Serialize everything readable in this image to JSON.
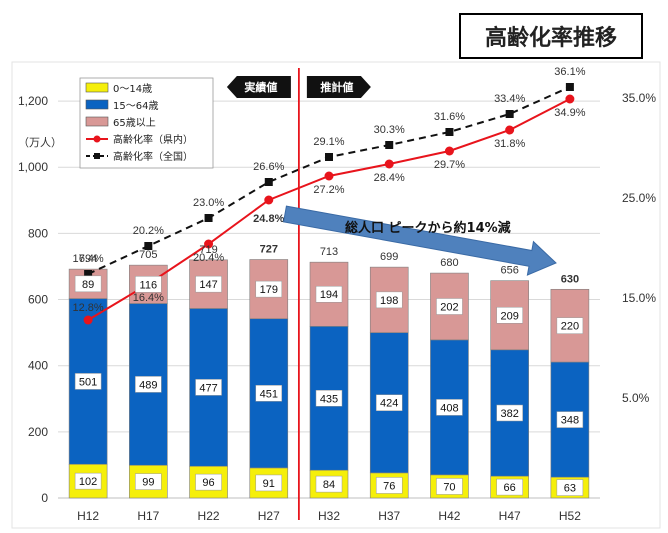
{
  "title": "高齢化率推移",
  "unit_label": "（万人）",
  "legend": [
    {
      "label": "0～14歳",
      "color": "#f5ef0a",
      "kind": "box"
    },
    {
      "label": "15～64歳",
      "color": "#0b63c1",
      "kind": "box"
    },
    {
      "label": "65歳以上",
      "color": "#d89896",
      "kind": "box"
    },
    {
      "label": "高齢化率（県内）",
      "color": "#e8141c",
      "kind": "line"
    },
    {
      "label": "高齢化率（全国）",
      "color": "#111111",
      "kind": "dash"
    }
  ],
  "period_labels": {
    "actual": "実績値",
    "projected": "推計値"
  },
  "annotation": "総人口 ピークから約14%減",
  "chart_data": {
    "type": "bar",
    "stacked": true,
    "categories": [
      "H12",
      "H17",
      "H22",
      "H27",
      "H32",
      "H37",
      "H42",
      "H47",
      "H52"
    ],
    "series": [
      {
        "name": "0～14歳",
        "color": "#f5ef0a",
        "values": [
          102,
          99,
          96,
          91,
          84,
          76,
          70,
          66,
          63
        ]
      },
      {
        "name": "15～64歳",
        "color": "#0b63c1",
        "values": [
          501,
          489,
          477,
          451,
          435,
          424,
          408,
          382,
          348
        ]
      },
      {
        "name": "65歳以上",
        "color": "#d89896",
        "values": [
          89,
          116,
          147,
          179,
          194,
          198,
          202,
          209,
          220
        ]
      }
    ],
    "totals": [
      694,
      705,
      719,
      727,
      713,
      699,
      680,
      656,
      630
    ],
    "lines": [
      {
        "name": "高齢化率（県内）",
        "color": "#e8141c",
        "style": "solid",
        "marker": "circle",
        "values": [
          12.8,
          16.4,
          20.4,
          24.8,
          27.2,
          28.4,
          29.7,
          31.8,
          34.9
        ],
        "labels": [
          "12.8%",
          "16.4%",
          "20.4%",
          "24.8%",
          "27.2%",
          "28.4%",
          "29.7%",
          "31.8%",
          "34.9%"
        ]
      },
      {
        "name": "高齢化率（全国）",
        "color": "#111111",
        "style": "dashed",
        "marker": "square",
        "values": [
          17.4,
          20.2,
          23.0,
          26.6,
          29.1,
          30.3,
          31.6,
          33.4,
          36.1
        ],
        "labels": [
          "17.4%",
          "20.2%",
          "23.0%",
          "26.6%",
          "29.1%",
          "30.3%",
          "31.6%",
          "33.4%",
          "36.1%"
        ]
      }
    ],
    "y_left": {
      "min": 0,
      "max": 1300,
      "ticks": [
        "0",
        "200",
        "400",
        "600",
        "800",
        "1,000",
        "1,200"
      ]
    },
    "y_right": {
      "min": -5,
      "max": 38,
      "ticks": [
        "5.0%",
        "15.0%",
        "25.0%",
        "35.0%"
      ]
    },
    "grid": true,
    "legend_position": "top-left",
    "divider_after_category": "H27"
  }
}
